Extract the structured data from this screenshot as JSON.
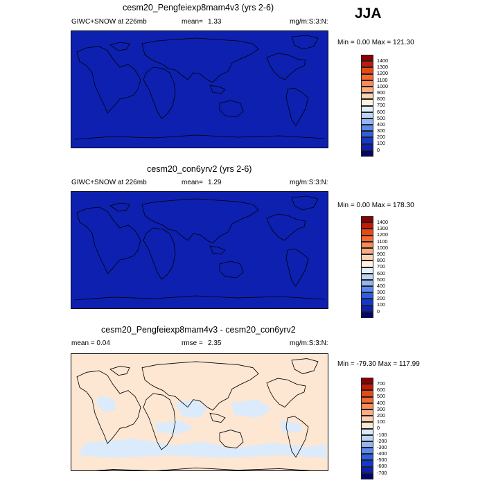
{
  "season": "JJA",
  "panels": [
    {
      "title": "cesm20_Pengfeiexp8mam4v3 (yrs 2-6)",
      "left_label": "GIWC+SNOW at 226mb",
      "mean_label": "mean=",
      "mean_value": "1.33",
      "units": "mg/m:S:3:N:",
      "minmax": "Min =   0.00 Max = 121.30",
      "fill": "#0d20b0",
      "levels": [
        "1400",
        "1300",
        "1200",
        "1100",
        "1000",
        "900",
        "800",
        "700",
        "600",
        "500",
        "400",
        "300",
        "200",
        "100",
        "0"
      ],
      "colors": [
        "#8b0000",
        "#c21a07",
        "#e84a16",
        "#f66a2f",
        "#fa8a56",
        "#fcab82",
        "#fdd2b3",
        "#fff2e0",
        "#e3effc",
        "#bdd4f8",
        "#93b6f2",
        "#5b88ea",
        "#2f5ee2",
        "#1537cd",
        "#0d20b0",
        "#02066b"
      ]
    },
    {
      "title": "cesm20_con6yrv2 (yrs 2-6)",
      "left_label": "GIWC+SNOW at 226mb",
      "mean_label": "mean=",
      "mean_value": "1.29",
      "units": "mg/m:S:3:N:",
      "minmax": "Min =   0.00 Max = 178.30",
      "fill": "#0d20b0",
      "levels": [
        "1400",
        "1300",
        "1200",
        "1100",
        "1000",
        "900",
        "800",
        "700",
        "600",
        "500",
        "400",
        "300",
        "200",
        "100",
        "0"
      ],
      "colors": [
        "#8b0000",
        "#c21a07",
        "#e84a16",
        "#f66a2f",
        "#fa8a56",
        "#fcab82",
        "#fdd2b3",
        "#fff2e0",
        "#e3effc",
        "#bdd4f8",
        "#93b6f2",
        "#5b88ea",
        "#2f5ee2",
        "#1537cd",
        "#0d20b0",
        "#02066b"
      ]
    },
    {
      "title": "cesm20_Pengfeiexp8mam4v3 - cesm20_con6yrv2",
      "left_label": "mean =   0.04",
      "mean_label": "rmse =",
      "mean_value": "2.35",
      "units": "mg/m:S:3:N:",
      "minmax": "Min = -79.30 Max = 117.99",
      "fill": "#fde6d2",
      "levels": [
        "700",
        "600",
        "500",
        "400",
        "300",
        "200",
        "100",
        "0",
        "-100",
        "-200",
        "-300",
        "-400",
        "-500",
        "-600",
        "-700"
      ],
      "colors": [
        "#8b0000",
        "#c21a07",
        "#e84a16",
        "#f66a2f",
        "#fa8a56",
        "#fcab82",
        "#fdd2b3",
        "#fde6d2",
        "#dcebfb",
        "#bdd4f8",
        "#93b6f2",
        "#5b88ea",
        "#2f5ee2",
        "#1537cd",
        "#0d20b0",
        "#02066b"
      ]
    }
  ]
}
